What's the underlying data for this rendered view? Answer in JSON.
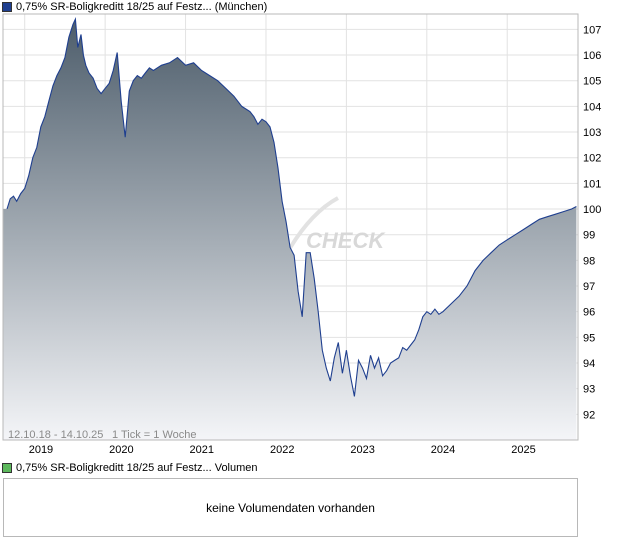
{
  "price_legend": {
    "label": "0,75% SR-Boligkreditt 18/25 auf Festz... (München)",
    "color": "#1f3f8f"
  },
  "volume_legend": {
    "label": "0,75% SR-Boligkreditt 18/25 auf Festz... Volumen",
    "color": "#5cb85c"
  },
  "info": {
    "range": "12.10.18 - 14.10.25",
    "tick": "1 Tick = 1 Woche"
  },
  "watermark": "CHECK",
  "volume_panel": {
    "message": "keine Volumendaten vorhanden"
  },
  "colors": {
    "line": "#1f3f8f",
    "area_top": "#4d5d6b",
    "area_bottom": "#f4f5f8",
    "grid": "#e2e2e2"
  },
  "chart_data": {
    "type": "area",
    "grid": true,
    "legend_position": "top-left",
    "ylim": [
      91,
      107.6
    ],
    "xlim": [
      2018.73,
      2025.88
    ],
    "y_ticks": [
      92,
      93,
      94,
      95,
      96,
      97,
      98,
      99,
      100,
      101,
      102,
      103,
      104,
      105,
      106,
      107
    ],
    "x_ticks": [
      {
        "label": "2019",
        "value": 2019.0
      },
      {
        "label": "2020",
        "value": 2020.0
      },
      {
        "label": "2021",
        "value": 2021.0
      },
      {
        "label": "2022",
        "value": 2022.0
      },
      {
        "label": "2023",
        "value": 2023.0
      },
      {
        "label": "2024",
        "value": 2024.0
      },
      {
        "label": "2025",
        "value": 2025.0
      }
    ],
    "x": [
      2018.78,
      2018.82,
      2018.86,
      2018.9,
      2018.95,
      2019.0,
      2019.05,
      2019.1,
      2019.15,
      2019.2,
      2019.25,
      2019.3,
      2019.35,
      2019.4,
      2019.45,
      2019.5,
      2019.55,
      2019.6,
      2019.63,
      2019.66,
      2019.7,
      2019.73,
      2019.76,
      2019.8,
      2019.85,
      2019.9,
      2019.95,
      2020.0,
      2020.05,
      2020.1,
      2020.15,
      2020.2,
      2020.25,
      2020.3,
      2020.35,
      2020.4,
      2020.45,
      2020.5,
      2020.55,
      2020.6,
      2020.7,
      2020.8,
      2020.9,
      2021.0,
      2021.1,
      2021.2,
      2021.3,
      2021.4,
      2021.5,
      2021.6,
      2021.7,
      2021.8,
      2021.85,
      2021.9,
      2021.95,
      2022.0,
      2022.05,
      2022.1,
      2022.15,
      2022.2,
      2022.25,
      2022.3,
      2022.35,
      2022.4,
      2022.45,
      2022.5,
      2022.55,
      2022.6,
      2022.65,
      2022.7,
      2022.75,
      2022.8,
      2022.85,
      2022.9,
      2022.95,
      2023.0,
      2023.05,
      2023.1,
      2023.15,
      2023.2,
      2023.25,
      2023.3,
      2023.35,
      2023.4,
      2023.45,
      2023.5,
      2023.55,
      2023.6,
      2023.65,
      2023.7,
      2023.75,
      2023.8,
      2023.85,
      2023.9,
      2023.95,
      2024.0,
      2024.05,
      2024.1,
      2024.15,
      2024.2,
      2024.3,
      2024.4,
      2024.5,
      2024.6,
      2024.7,
      2024.8,
      2024.9,
      2025.0,
      2025.1,
      2025.2,
      2025.3,
      2025.4,
      2025.5,
      2025.6,
      2025.7,
      2025.8,
      2025.86
    ],
    "series": [
      {
        "values": [
          100,
          100.4,
          100.5,
          100.3,
          100.6,
          100.8,
          101.3,
          102.0,
          102.4,
          103.2,
          103.6,
          104.2,
          104.8,
          105.2,
          105.5,
          105.9,
          106.7,
          107.2,
          107.4,
          106.3,
          106.8,
          106.0,
          105.6,
          105.3,
          105.1,
          104.7,
          104.5,
          104.7,
          104.9,
          105.4,
          106.1,
          104.2,
          102.8,
          104.6,
          105.0,
          105.2,
          105.1,
          105.3,
          105.5,
          105.4,
          105.6,
          105.7,
          105.9,
          105.6,
          105.7,
          105.4,
          105.2,
          105.0,
          104.7,
          104.4,
          104.0,
          103.8,
          103.6,
          103.3,
          103.5,
          103.4,
          103.2,
          102.6,
          101.6,
          100.3,
          99.5,
          98.5,
          98.2,
          96.8,
          95.8,
          98.3,
          98.3,
          97.3,
          96.0,
          94.5,
          93.8,
          93.3,
          94.2,
          94.8,
          93.6,
          94.5,
          93.5,
          92.7,
          94.1,
          93.8,
          93.4,
          94.3,
          93.8,
          94.2,
          93.5,
          93.7,
          94.0,
          94.1,
          94.2,
          94.6,
          94.5,
          94.7,
          94.9,
          95.3,
          95.8,
          96.0,
          95.9,
          96.1,
          95.9,
          96.0,
          96.3,
          96.6,
          97.0,
          97.6,
          98.0,
          98.3,
          98.6,
          98.8,
          99.0,
          99.2,
          99.4,
          99.6,
          99.7,
          99.8,
          99.9,
          100.0,
          100.1
        ]
      }
    ]
  }
}
